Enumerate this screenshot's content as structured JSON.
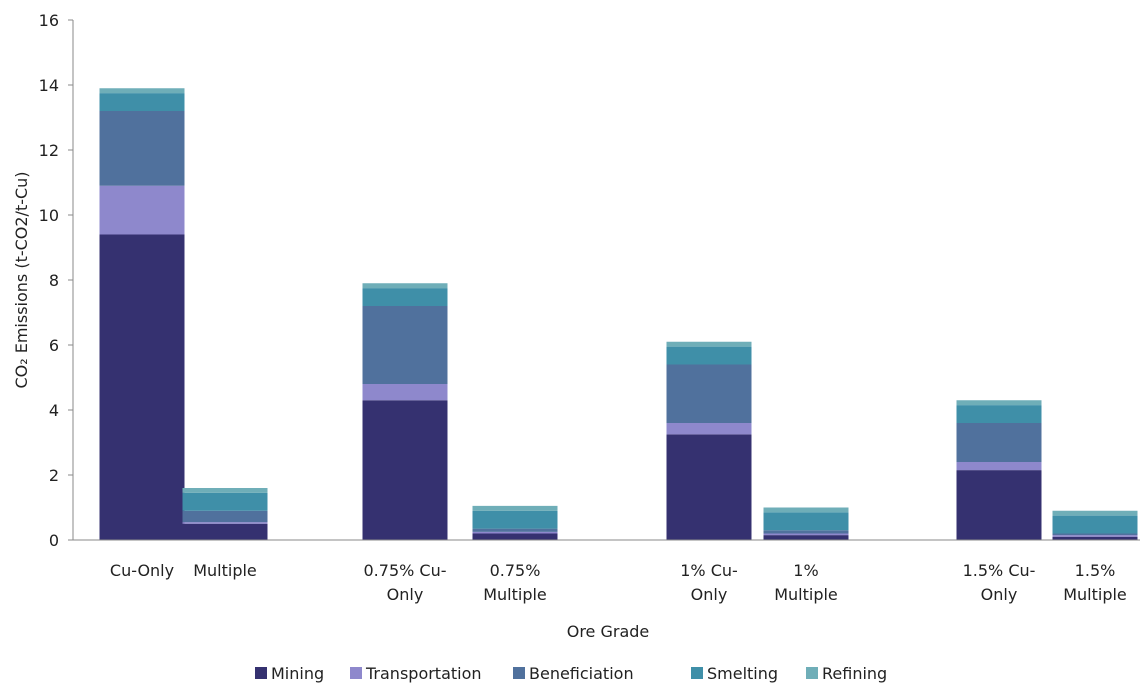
{
  "chart_data": {
    "type": "bar",
    "stacked": true,
    "title": "",
    "xlabel": "Ore Grade",
    "ylabel": "CO₂ Emissions (t-CO2/t-Cu)",
    "ylim": [
      0,
      16
    ],
    "yticks": [
      0,
      2,
      4,
      6,
      8,
      10,
      12,
      14,
      16
    ],
    "grid": false,
    "legend": "bottom",
    "categories": [
      "Cu-Only",
      "Multiple",
      "0.75% Cu-Only",
      "0.75% Multiple",
      "1% Cu-Only",
      "1% Multiple",
      "1.5% Cu-Only",
      "1.5% Multiple"
    ],
    "category_label_lines": [
      [
        "Cu-Only"
      ],
      [
        "Multiple"
      ],
      [
        "0.75% Cu-",
        "Only"
      ],
      [
        "0.75%",
        "Multiple"
      ],
      [
        "1% Cu-",
        "Only"
      ],
      [
        "1%",
        "Multiple"
      ],
      [
        "1.5% Cu-",
        "Only"
      ],
      [
        "1.5%",
        "Multiple"
      ]
    ],
    "series": [
      {
        "name": "Mining",
        "color": "#353170",
        "values": [
          9.4,
          0.5,
          4.3,
          0.2,
          3.25,
          0.15,
          2.15,
          0.1
        ]
      },
      {
        "name": "Transportation",
        "color": "#8e88cc",
        "values": [
          1.5,
          0.05,
          0.5,
          0.05,
          0.35,
          0.05,
          0.25,
          0.05
        ]
      },
      {
        "name": "Beneficiation",
        "color": "#50719d",
        "values": [
          2.3,
          0.35,
          2.4,
          0.1,
          1.8,
          0.1,
          1.2,
          0.05
        ]
      },
      {
        "name": "Smelting",
        "color": "#3f8fa8",
        "values": [
          0.55,
          0.55,
          0.55,
          0.55,
          0.55,
          0.55,
          0.55,
          0.55
        ]
      },
      {
        "name": "Refining",
        "color": "#6faeb8",
        "values": [
          0.15,
          0.15,
          0.15,
          0.15,
          0.15,
          0.15,
          0.15,
          0.15
        ]
      }
    ]
  }
}
